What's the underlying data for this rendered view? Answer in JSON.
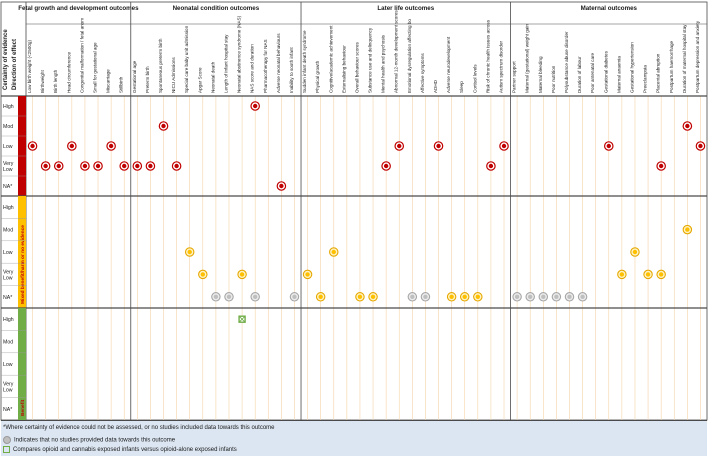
{
  "header": {
    "certainty_label": "Certainty of evidence",
    "direction_label": "Direction of effect"
  },
  "groups": [
    {
      "name": "Fetal growth and development outcomes",
      "start": 0,
      "count": 8
    },
    {
      "name": "Neonatal condition outcomes",
      "start": 8,
      "count": 13
    },
    {
      "name": "Later life outcomes",
      "start": 21,
      "count": 16
    },
    {
      "name": "Maternal outcomes",
      "start": 37,
      "count": 15
    }
  ],
  "outcomes": [
    "Low birth weight (<2500g)",
    "Birthweight",
    "Birth length",
    "Head circumference",
    "Congenital malformation / fetal anomalies",
    "Small for gestational age",
    "Miscarriage",
    "Stillbirth",
    "Gestational age",
    "Preterm birth",
    "Spontaneous preterm birth",
    "NICU Admissions",
    "Special care baby unit admission",
    "Apgar Score",
    "Neonatal death",
    "Length of infant hospital stay",
    "Neonatal abstinence syndrome (NAS)",
    "NAS score and duration",
    "Pharmacotherapy for NAS",
    "Adverse neonatal behaviours",
    "Inability to sooth infant",
    "Sudden infant death syndrome",
    "Physical growth",
    "Cognitive/academic achievement",
    "Externalising behaviour",
    "Overall behaviour scores",
    "Substance use and delinquency",
    "Mental health and psychosis",
    "Abnormal 12-month development scores",
    "Emotional dysregulation affecting bonding",
    "Affective symptoms",
    "ADHD",
    "Adverse neurodevelopment",
    "Sleep",
    "Cortisol levels",
    "Risk of chronic health issues across lifespan",
    "Autism spectrum disorder",
    "Partner support",
    "Maternal (gestational) weight gain",
    "Maternal bleeding",
    "Poor nutrition",
    "Polysubstance abuse disorder",
    "Duration of labour",
    "Poor antenatal care",
    "Gestational diabetes",
    "Maternal anaemia",
    "Gestational hypertension",
    "Preeclampsia",
    "Placental abruption",
    "Postpartum haemorrhage",
    "Duration of maternal hospital stay",
    "Postpartum depression and anxiety"
  ],
  "sections": [
    {
      "name": "Harm",
      "color": "#c00000",
      "label_color": "#c00000"
    },
    {
      "name": "Mixed benefit/harm or no evidence",
      "color": "#ffc000",
      "label_color": "#c00000"
    },
    {
      "name": "Benefit",
      "color": "#70ad47",
      "label_color": "#c00000"
    }
  ],
  "row_labels": [
    "High",
    "Mod",
    "Low",
    "Very Low",
    "NA*"
  ],
  "markers": [
    {
      "s": 0,
      "r": 2,
      "c": 0,
      "t": "red"
    },
    {
      "s": 0,
      "r": 3,
      "c": 1,
      "t": "red"
    },
    {
      "s": 0,
      "r": 3,
      "c": 2,
      "t": "red"
    },
    {
      "s": 0,
      "r": 2,
      "c": 3,
      "t": "red"
    },
    {
      "s": 0,
      "r": 3,
      "c": 4,
      "t": "red"
    },
    {
      "s": 0,
      "r": 3,
      "c": 5,
      "t": "red"
    },
    {
      "s": 0,
      "r": 2,
      "c": 6,
      "t": "red"
    },
    {
      "s": 0,
      "r": 3,
      "c": 7,
      "t": "red"
    },
    {
      "s": 0,
      "r": 3,
      "c": 8,
      "t": "red"
    },
    {
      "s": 0,
      "r": 3,
      "c": 9,
      "t": "red"
    },
    {
      "s": 0,
      "r": 1,
      "c": 10,
      "t": "red"
    },
    {
      "s": 0,
      "r": 3,
      "c": 11,
      "t": "red"
    },
    {
      "s": 0,
      "r": 0,
      "c": 17,
      "t": "red"
    },
    {
      "s": 0,
      "r": 4,
      "c": 19,
      "t": "red"
    },
    {
      "s": 0,
      "r": 3,
      "c": 27,
      "t": "red"
    },
    {
      "s": 0,
      "r": 2,
      "c": 28,
      "t": "red"
    },
    {
      "s": 0,
      "r": 2,
      "c": 31,
      "t": "red"
    },
    {
      "s": 0,
      "r": 3,
      "c": 35,
      "t": "red"
    },
    {
      "s": 0,
      "r": 2,
      "c": 36,
      "t": "red"
    },
    {
      "s": 0,
      "r": 2,
      "c": 44,
      "t": "red"
    },
    {
      "s": 0,
      "r": 3,
      "c": 48,
      "t": "red"
    },
    {
      "s": 0,
      "r": 1,
      "c": 50,
      "t": "red"
    },
    {
      "s": 0,
      "r": 2,
      "c": 51,
      "t": "red"
    },
    {
      "s": 1,
      "r": 2,
      "c": 12,
      "t": "yellow"
    },
    {
      "s": 1,
      "r": 3,
      "c": 13,
      "t": "yellow"
    },
    {
      "s": 1,
      "r": 3,
      "c": 16,
      "t": "yellow"
    },
    {
      "s": 1,
      "r": 4,
      "c": 14,
      "t": "grey"
    },
    {
      "s": 1,
      "r": 4,
      "c": 15,
      "t": "grey"
    },
    {
      "s": 1,
      "r": 4,
      "c": 17,
      "t": "grey"
    },
    {
      "s": 1,
      "r": 4,
      "c": 20,
      "t": "grey"
    },
    {
      "s": 1,
      "r": 3,
      "c": 21,
      "t": "yellow"
    },
    {
      "s": 1,
      "r": 4,
      "c": 22,
      "t": "yellow"
    },
    {
      "s": 1,
      "r": 2,
      "c": 23,
      "t": "yellow"
    },
    {
      "s": 1,
      "r": 4,
      "c": 25,
      "t": "yellow"
    },
    {
      "s": 1,
      "r": 4,
      "c": 26,
      "t": "yellow"
    },
    {
      "s": 1,
      "r": 4,
      "c": 29,
      "t": "grey"
    },
    {
      "s": 1,
      "r": 4,
      "c": 30,
      "t": "grey"
    },
    {
      "s": 1,
      "r": 4,
      "c": 32,
      "t": "yellow"
    },
    {
      "s": 1,
      "r": 4,
      "c": 33,
      "t": "yellow"
    },
    {
      "s": 1,
      "r": 4,
      "c": 34,
      "t": "yellow"
    },
    {
      "s": 1,
      "r": 4,
      "c": 37,
      "t": "grey"
    },
    {
      "s": 1,
      "r": 4,
      "c": 38,
      "t": "grey"
    },
    {
      "s": 1,
      "r": 4,
      "c": 39,
      "t": "grey"
    },
    {
      "s": 1,
      "r": 4,
      "c": 40,
      "t": "grey"
    },
    {
      "s": 1,
      "r": 4,
      "c": 41,
      "t": "grey"
    },
    {
      "s": 1,
      "r": 4,
      "c": 42,
      "t": "grey"
    },
    {
      "s": 1,
      "r": 3,
      "c": 45,
      "t": "yellow"
    },
    {
      "s": 1,
      "r": 2,
      "c": 46,
      "t": "yellow"
    },
    {
      "s": 1,
      "r": 3,
      "c": 47,
      "t": "yellow"
    },
    {
      "s": 1,
      "r": 3,
      "c": 48,
      "t": "yellow"
    },
    {
      "s": 1,
      "r": 1,
      "c": 50,
      "t": "yellow"
    },
    {
      "s": 2,
      "r": 0,
      "c": 16,
      "t": "green"
    }
  ],
  "footnotes": {
    "na_note": "*Where certainty of evidence could not be assessed, or no studies included data towards this outcome",
    "grey_note": "Indicates that no studies provided data towards this outcome",
    "green_note": "Compares opioid and cannabis exposed infants versus opioid-alone exposed infants"
  },
  "colors": {
    "harm": "#c00000",
    "mixed": "#ffc000",
    "benefit": "#70ad47",
    "grey_marker": "#bfbfbf",
    "footer_bg": "#dce6f2",
    "column_line": "#f4d3a6"
  }
}
